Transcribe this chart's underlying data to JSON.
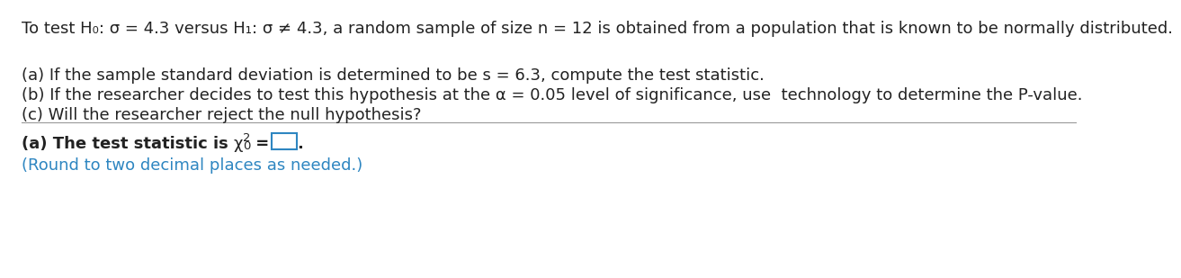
{
  "bg_color": "#ffffff",
  "line1": "To test H₀: σ = 4.3 versus H₁: σ ≠ 4.3, a random sample of size n = 12 is obtained from a population that is known to be normally distributed.",
  "line_a": "(a) If the sample standard deviation is determined to be s = 6.3, compute the test statistic.",
  "line_b": "(b) If the researcher decides to test this hypothesis at the α = 0.05 level of significance, use  technology to determine the P-value.",
  "line_c": "(c) Will the researcher reject the null hypothesis?",
  "round_note": "(Round to two decimal places as needed.)",
  "text_color": "#222222",
  "blue_color": "#2e86c1",
  "separator_color": "#999999",
  "font_size_main": 13.0,
  "font_size_answer": 13.0,
  "font_size_round": 13.0,
  "font_size_super": 9.5,
  "font_size_sub": 9.5
}
